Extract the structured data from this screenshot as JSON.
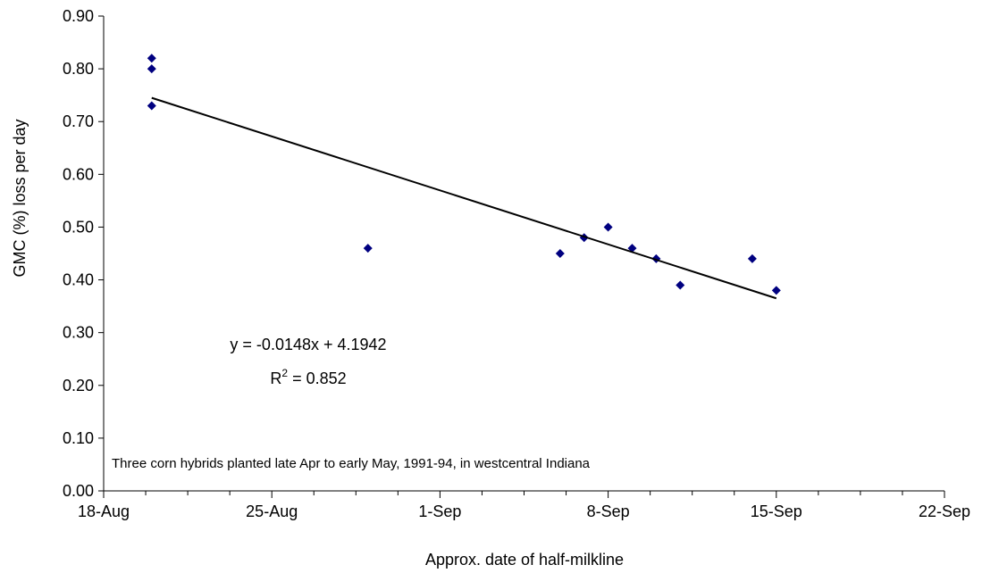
{
  "chart_data": {
    "type": "scatter",
    "title": "",
    "xlabel": "Approx. date of half-milkline",
    "ylabel": "GMC (%) loss per day",
    "x_tick_labels": [
      "18-Aug",
      "25-Aug",
      "1-Sep",
      "8-Sep",
      "15-Sep",
      "22-Sep"
    ],
    "y_tick_labels": [
      "0.00",
      "0.10",
      "0.20",
      "0.30",
      "0.40",
      "0.50",
      "0.60",
      "0.70",
      "0.80",
      "0.90"
    ],
    "xlim": [
      "18-Aug",
      "22-Sep"
    ],
    "ylim": [
      0,
      0.9
    ],
    "grid": false,
    "legend": "none",
    "marker_color": "#000080",
    "points": [
      {
        "x": "20-Aug",
        "y": 0.82
      },
      {
        "x": "20-Aug",
        "y": 0.8
      },
      {
        "x": "20-Aug",
        "y": 0.73
      },
      {
        "x": "29-Aug",
        "y": 0.46
      },
      {
        "x": "6-Sep",
        "y": 0.45
      },
      {
        "x": "7-Sep",
        "y": 0.48
      },
      {
        "x": "8-Sep",
        "y": 0.5
      },
      {
        "x": "9-Sep",
        "y": 0.46
      },
      {
        "x": "10-Sep",
        "y": 0.44
      },
      {
        "x": "11-Sep",
        "y": 0.39
      },
      {
        "x": "14-Sep",
        "y": 0.44
      },
      {
        "x": "15-Sep",
        "y": 0.38
      }
    ],
    "trendline": {
      "type": "linear",
      "equation": "y = -0.0148x + 4.1942",
      "r_squared_prefix": "R",
      "r_squared_sup": "2",
      "r_squared_value": " = 0.852",
      "start": {
        "x": "20-Aug",
        "y": 0.745
      },
      "end": {
        "x": "15-Sep",
        "y": 0.365
      },
      "color": "#000000"
    },
    "annotation": "Three corn hybrids planted late Apr to early May, 1991-94, in westcentral Indiana"
  }
}
